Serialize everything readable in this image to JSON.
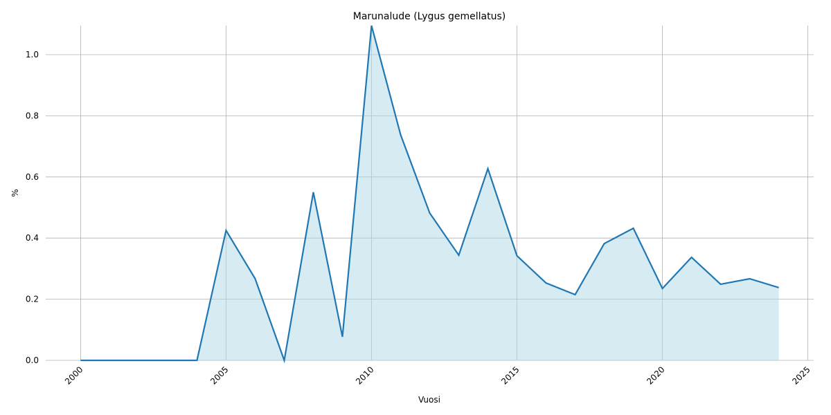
{
  "chart_data": {
    "type": "line",
    "title": "Marunalude (Lygus gemellatus)",
    "x_label": "Vuosi",
    "y_label": "%",
    "x": [
      2000,
      2001,
      2002,
      2003,
      2004,
      2005,
      2006,
      2007,
      2008,
      2009,
      2010,
      2011,
      2012,
      2013,
      2014,
      2015,
      2016,
      2017,
      2018,
      2019,
      2020,
      2021,
      2022,
      2023,
      2024
    ],
    "series": [
      {
        "name": "Marunalude",
        "color": "#1f77b4",
        "fill_color": "#add8e6",
        "values": [
          0,
          0,
          0,
          0,
          0,
          0.425,
          0.267,
          0,
          0.55,
          0.077,
          1.095,
          0.738,
          0.482,
          0.344,
          0.627,
          0.342,
          0.253,
          0.215,
          0.382,
          0.432,
          0.235,
          0.337,
          0.249,
          0.267,
          0.238
        ]
      }
    ],
    "xlim": [
      1998.8,
      2025.2
    ],
    "ylim": [
      0,
      1.095
    ],
    "xticks": [
      2000,
      2005,
      2010,
      2015,
      2020,
      2025
    ],
    "yticks": [
      {
        "value": 0,
        "label": "0.0"
      },
      {
        "value": 0.2,
        "label": "0.2"
      },
      {
        "value": 0.4,
        "label": "0.4"
      },
      {
        "value": 0.6,
        "label": "0.6"
      },
      {
        "value": 0.8,
        "label": "0.8"
      },
      {
        "value": 1.0,
        "label": "1.0"
      }
    ],
    "grid": true
  }
}
